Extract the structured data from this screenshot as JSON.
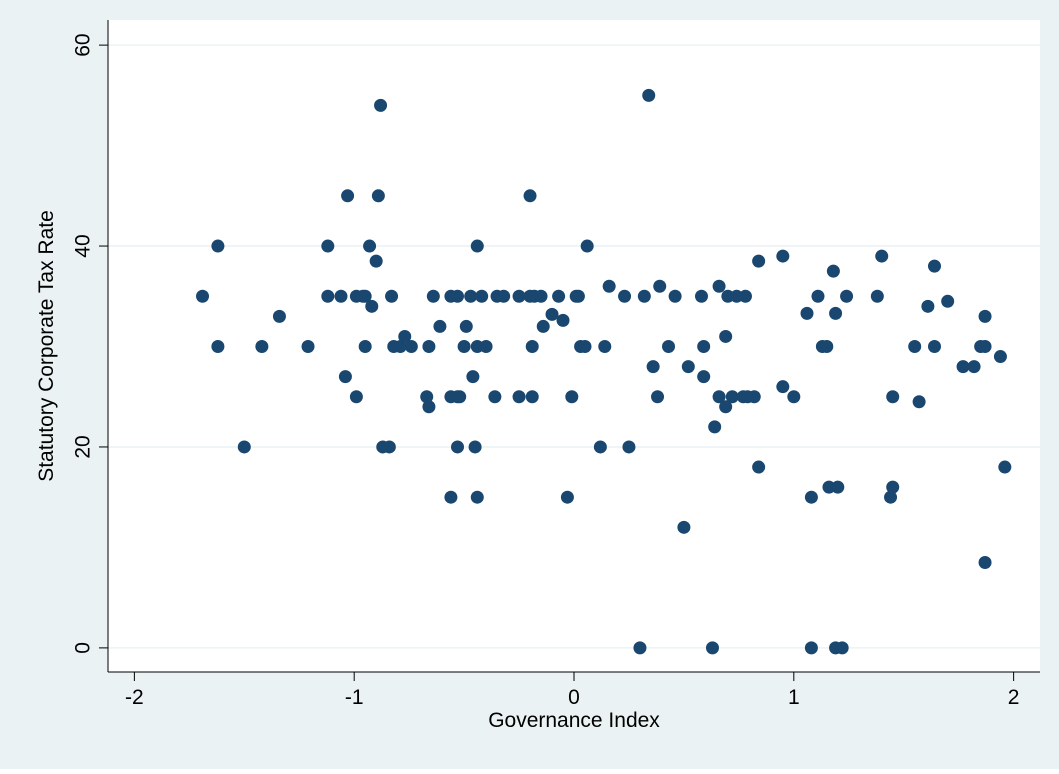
{
  "chart_data": {
    "type": "scatter",
    "xlabel": "Governance Index",
    "ylabel": "Statutory Corporate Tax Rate",
    "color": "#1a476f",
    "grid": true,
    "xlim": [
      -2.12,
      2.12
    ],
    "ylim": [
      -2.4,
      62.5
    ],
    "xticks": [
      -2,
      -1,
      0,
      1,
      2
    ],
    "yticks": [
      0,
      20,
      40,
      60
    ],
    "x": [
      -1.69,
      -1.62,
      -1.62,
      -1.5,
      -1.42,
      -1.34,
      -1.21,
      -1.12,
      -1.12,
      -1.06,
      -1.04,
      -1.03,
      -0.99,
      -0.99,
      -0.96,
      -0.95,
      -0.95,
      -0.93,
      -0.92,
      -0.9,
      -0.89,
      -0.88,
      -0.87,
      -0.84,
      -0.83,
      -0.82,
      -0.79,
      -0.77,
      -0.74,
      -0.67,
      -0.66,
      -0.66,
      -0.64,
      -0.61,
      -0.56,
      -0.56,
      -0.56,
      -0.53,
      -0.53,
      -0.53,
      -0.52,
      -0.5,
      -0.49,
      -0.47,
      -0.46,
      -0.45,
      -0.44,
      -0.44,
      -0.44,
      -0.42,
      -0.4,
      -0.36,
      -0.35,
      -0.32,
      -0.25,
      -0.25,
      -0.2,
      -0.2,
      -0.19,
      -0.19,
      -0.18,
      -0.15,
      -0.14,
      -0.1,
      -0.07,
      -0.05,
      -0.03,
      -0.01,
      0.01,
      0.02,
      0.03,
      0.05,
      0.06,
      0.12,
      0.14,
      0.16,
      0.23,
      0.25,
      0.3,
      0.32,
      0.34,
      0.36,
      0.38,
      0.39,
      0.43,
      0.46,
      0.5,
      0.52,
      0.58,
      0.59,
      0.59,
      0.63,
      0.64,
      0.66,
      0.66,
      0.69,
      0.69,
      0.7,
      0.72,
      0.74,
      0.77,
      0.78,
      0.79,
      0.82,
      0.84,
      0.84,
      0.95,
      0.95,
      1.0,
      1.06,
      1.08,
      1.08,
      1.11,
      1.13,
      1.15,
      1.16,
      1.18,
      1.19,
      1.19,
      1.2,
      1.22,
      1.24,
      1.38,
      1.4,
      1.44,
      1.45,
      1.45,
      1.55,
      1.57,
      1.61,
      1.64,
      1.64,
      1.7,
      1.77,
      1.82,
      1.85,
      1.87,
      1.87,
      1.87,
      1.94,
      1.96
    ],
    "values": [
      35,
      40,
      30,
      20,
      30,
      33,
      30,
      40,
      35,
      35,
      27,
      45,
      25,
      35,
      35,
      35,
      30,
      40,
      34,
      38.5,
      45,
      54,
      20,
      20,
      35,
      30,
      30,
      31,
      30,
      25,
      24,
      30,
      35,
      32,
      15,
      35,
      25,
      25,
      20,
      35,
      25,
      30,
      32,
      35,
      27,
      20,
      40,
      15,
      30,
      35,
      30,
      25,
      35,
      35,
      35,
      25,
      35,
      45,
      30,
      25,
      35,
      35,
      32,
      33.2,
      35,
      32.6,
      15,
      25,
      35,
      35,
      30,
      30,
      40,
      20,
      30,
      36,
      35,
      20,
      0,
      35,
      55,
      28,
      25,
      36,
      30,
      35,
      12,
      28,
      35,
      30,
      27,
      0,
      22,
      25,
      36,
      24,
      31,
      35,
      25,
      35,
      25,
      35,
      25,
      25,
      18,
      38.5,
      39,
      26,
      25,
      33.3,
      0,
      15,
      35,
      30,
      30,
      16,
      37.5,
      33.3,
      0,
      16,
      0,
      35,
      35,
      39,
      15,
      25,
      16,
      30,
      24.5,
      34,
      38,
      30,
      34.5,
      28,
      28,
      30,
      30,
      8.5,
      33,
      29,
      18
    ]
  }
}
